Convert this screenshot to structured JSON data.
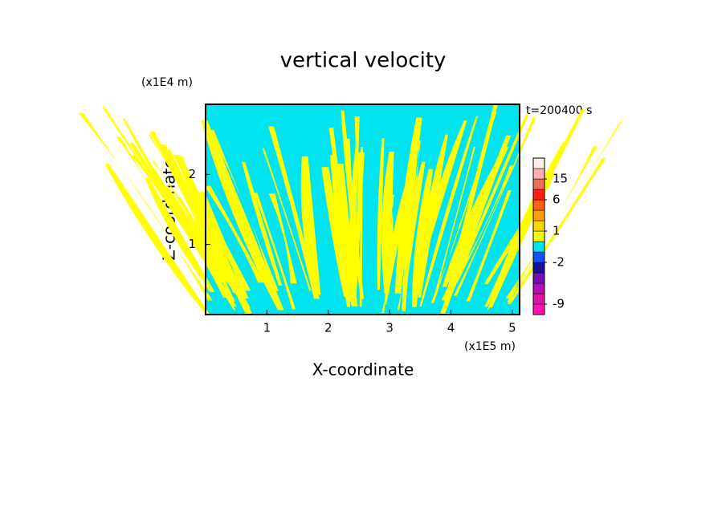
{
  "chart_data": {
    "type": "contour",
    "title": "vertical velocity",
    "time_label": "t=200400 s",
    "x_label": "X-coordinate",
    "y_label": "Z-coordinate",
    "x_unit": "(x1E5 m)",
    "y_unit": "(x1E4 m)",
    "xlim": [
      0,
      5.12
    ],
    "xticks": [
      1,
      2,
      3,
      4,
      5
    ],
    "ylim": [
      0,
      3
    ],
    "yticks": [
      1,
      2
    ],
    "colorbar": {
      "levels": [
        -12,
        -9,
        -6,
        -4,
        -3,
        -2,
        -1,
        0,
        1,
        2,
        4,
        6,
        10,
        15,
        20,
        25
      ],
      "colors": [
        "#ff10b0",
        "#e010a8",
        "#b010b0",
        "#7010b0",
        "#1a10a0",
        "#1050ff",
        "#00e4f0",
        "#ffff00",
        "#ffd800",
        "#ffa000",
        "#ff6010",
        "#ff2010",
        "#f07060",
        "#f8b0b0",
        "#fff0ec"
      ],
      "ticks": [
        -9,
        -2,
        1,
        6,
        15
      ]
    }
  }
}
